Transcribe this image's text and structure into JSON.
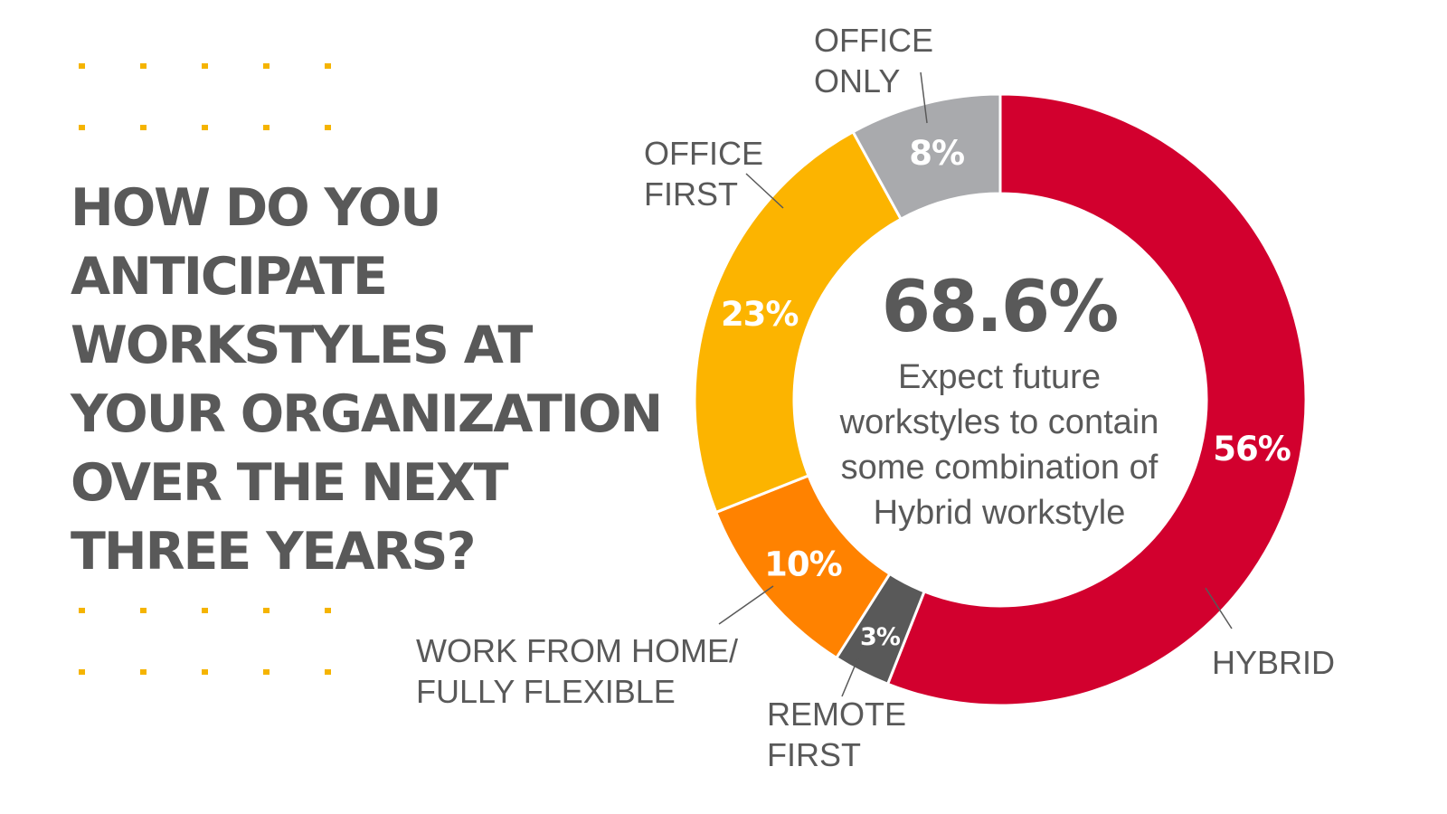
{
  "question": {
    "lines": [
      "HOW DO YOU",
      "ANTICIPATE",
      "WORKSTYLES AT",
      "YOUR ORGANIZATION",
      "OVER THE NEXT",
      "THREE YEARS?"
    ]
  },
  "center": {
    "value": "68.6%",
    "caption_lines": [
      "Expect future",
      "workstyles to contain",
      "some combination of",
      "Hybrid workstyle"
    ]
  },
  "colors": {
    "hybrid": "#d2002e",
    "remote_first": "#595959",
    "wfh": "#ff8200",
    "office_first": "#fcb400",
    "office_only": "#a9aaad",
    "text": "#595959",
    "dots": "#f5b400"
  },
  "chart_data": {
    "type": "pie",
    "donut": true,
    "categories": [
      "HYBRID",
      "REMOTE FIRST",
      "WORK FROM HOME/ FULLY FLEXIBLE",
      "OFFICE FIRST",
      "OFFICE ONLY"
    ],
    "label_lines": [
      [
        "HYBRID"
      ],
      [
        "REMOTE",
        "FIRST"
      ],
      [
        "WORK FROM HOME/",
        "FULLY FLEXIBLE"
      ],
      [
        "OFFICE",
        "FIRST"
      ],
      [
        "OFFICE",
        "ONLY"
      ]
    ],
    "values": [
      56,
      3,
      10,
      23,
      8
    ],
    "value_labels": [
      "56%",
      "3%",
      "10%",
      "23%",
      "8%"
    ],
    "colors": [
      "#d2002e",
      "#595959",
      "#ff8200",
      "#fcb400",
      "#a9aaad"
    ],
    "start": "12 o'clock",
    "direction": "clockwise",
    "legend": "none"
  }
}
